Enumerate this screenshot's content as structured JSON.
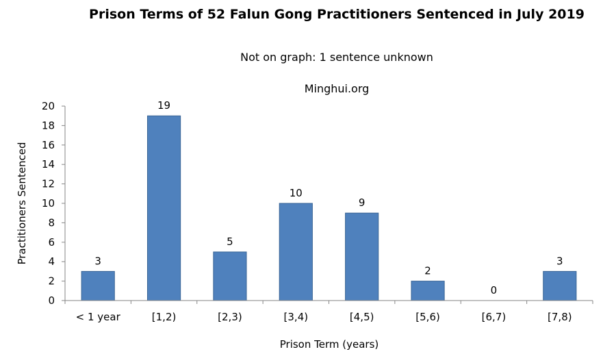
{
  "chart_data": {
    "type": "bar",
    "title": "Prison Terms of 52 Falun Gong Practitioners Sentenced in July 2019",
    "subtitle": "Not on graph: 1 sentence unknown",
    "source": "Minghui.org",
    "xlabel": "Prison Term (years)",
    "ylabel": "Practitioners Sentenced",
    "categories": [
      "< 1 year",
      "[1,2)",
      "[2,3)",
      "[3,4)",
      "[4,5)",
      "[5,6)",
      "[6,7)",
      "[7,8)"
    ],
    "values": [
      3,
      19,
      5,
      10,
      9,
      2,
      0,
      3
    ],
    "ylim": [
      0,
      20
    ],
    "yticks": [
      0,
      2,
      4,
      6,
      8,
      10,
      12,
      14,
      16,
      18,
      20
    ],
    "grid": false,
    "data_labels": true,
    "bar_color": "#4F81BD",
    "bar_border_color": "#3A6595"
  }
}
